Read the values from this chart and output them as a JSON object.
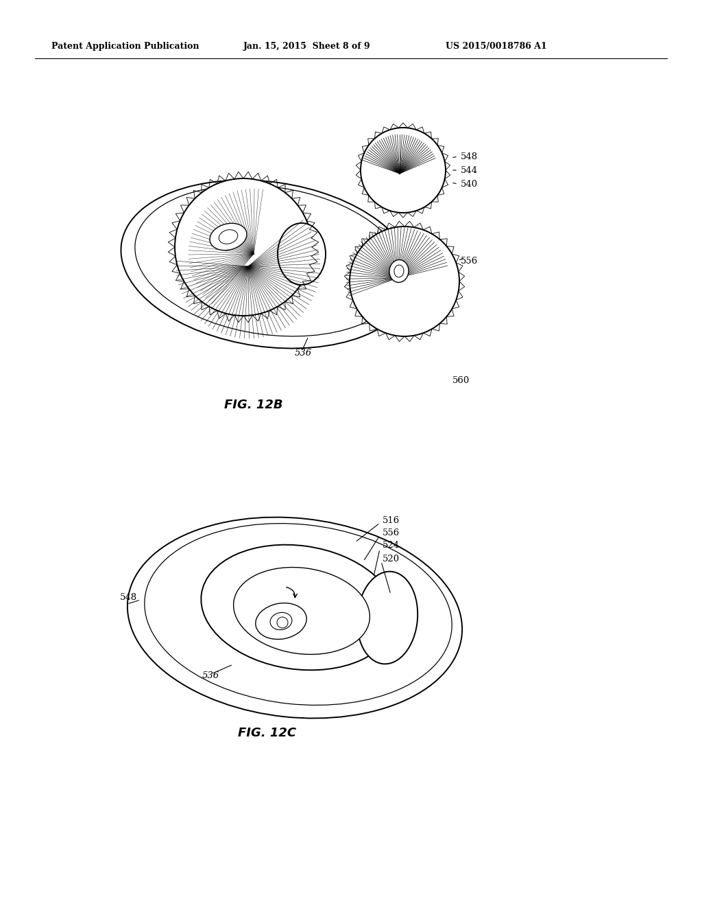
{
  "bg_color": "#ffffff",
  "header_left": "Patent Application Publication",
  "header_mid": "Jan. 15, 2015  Sheet 8 of 9",
  "header_right": "US 2015/0018786 A1",
  "fig12b_label": "FIG. 12B",
  "fig12c_label": "FIG. 12C"
}
